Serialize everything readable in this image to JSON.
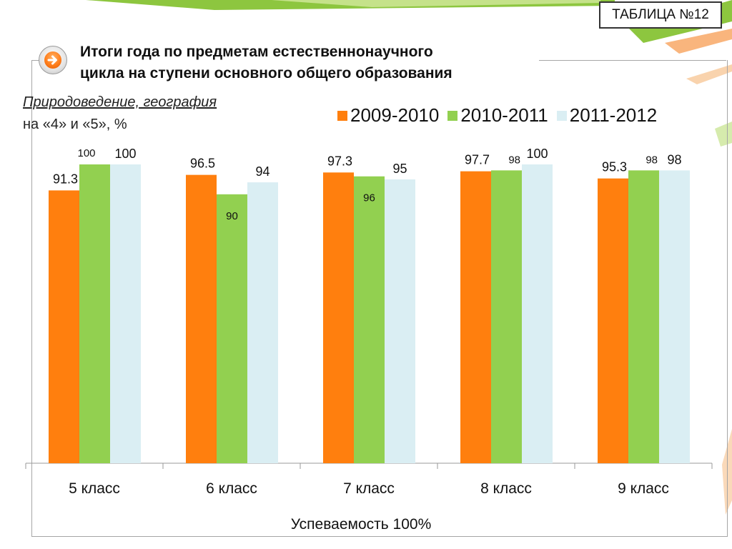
{
  "badge": "ТАБЛИЦА №12",
  "title_line1": "Итоги года по предметам естественнонаучного",
  "title_line2": "цикла на ступени основного общего образования",
  "subject": "Природоведение, география",
  "unit_text": "на «4» и «5», %",
  "footer": "Успеваемость 100%",
  "icons": {
    "nav": "arrow-right-icon"
  },
  "chart_data": {
    "type": "bar",
    "categories": [
      "5 класс",
      "6 класс",
      "7 класс",
      "8 класс",
      "9 класс"
    ],
    "series": [
      {
        "name": "2009-2010",
        "color": "#ff7f0e",
        "values": [
          91.3,
          96.5,
          97.3,
          97.7,
          95.3
        ],
        "labels": [
          "91.3",
          "96.5",
          "97.3",
          "97.7",
          "95.3"
        ]
      },
      {
        "name": "2010-2011",
        "color": "#92d050",
        "values": [
          100,
          90,
          96,
          98,
          98
        ],
        "labels": [
          "100",
          "90",
          "96",
          "98",
          "98"
        ]
      },
      {
        "name": "2011-2012",
        "color": "#daeef3",
        "values": [
          100,
          94,
          95,
          100,
          98
        ],
        "labels": [
          "100",
          "94",
          "95",
          "100",
          "98"
        ]
      }
    ],
    "legend_position": "top-right",
    "grid": false
  }
}
